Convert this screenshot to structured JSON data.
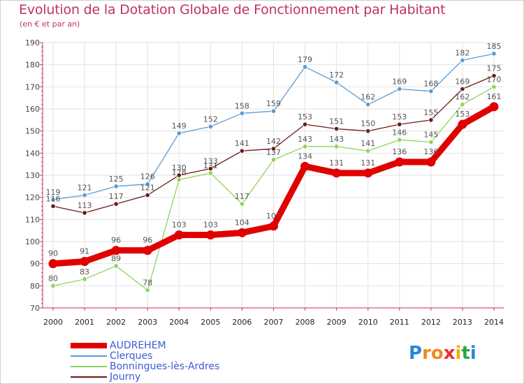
{
  "title": "Evolution de la Dotation Globale de Fonctionnement par Habitant",
  "subtitle": "(en € et par an)",
  "logo": {
    "text": "Proxiti",
    "letters": [
      "P",
      "r",
      "o",
      "x",
      "i",
      "t",
      "i"
    ],
    "colors": [
      "#2a86d8",
      "#f08a1a",
      "#f08a1a",
      "#e83030",
      "#f0b000",
      "#22a84a",
      "#2a86d8"
    ]
  },
  "chart_data": {
    "type": "line",
    "title": "Evolution de la Dotation Globale de Fonctionnement par Habitant",
    "ylabel": "(en € et par an)",
    "xlabel": "",
    "x": [
      "2000",
      "2001",
      "2002",
      "2003",
      "2004",
      "2005",
      "2006",
      "2007",
      "2008",
      "2009",
      "2010",
      "2011",
      "2012",
      "2013",
      "2014"
    ],
    "ylim": [
      70,
      190
    ],
    "yticks": [
      70,
      80,
      90,
      100,
      110,
      120,
      130,
      140,
      150,
      160,
      170,
      180,
      190
    ],
    "grid": true,
    "legend_position": "bottom-left",
    "series": [
      {
        "name": "AUDREHEM",
        "color": "#e00000",
        "values": [
          90,
          91,
          96,
          96,
          103,
          103,
          104,
          107,
          134,
          131,
          131,
          136,
          136,
          153,
          161
        ]
      },
      {
        "name": "Clerques",
        "color": "#5b9bd0",
        "values": [
          119,
          121,
          125,
          126,
          149,
          152,
          158,
          159,
          179,
          172,
          162,
          169,
          168,
          182,
          185
        ]
      },
      {
        "name": "Bonningues-lès-Ardres",
        "color": "#8fd35a",
        "values": [
          80,
          83,
          89,
          78,
          128,
          131,
          117,
          137,
          143,
          143,
          141,
          146,
          145,
          162,
          170
        ]
      },
      {
        "name": "Journy",
        "color": "#6b1a1a",
        "values": [
          116,
          113,
          117,
          121,
          130,
          133,
          141,
          142,
          153,
          151,
          150,
          153,
          155,
          169,
          175
        ]
      }
    ]
  }
}
